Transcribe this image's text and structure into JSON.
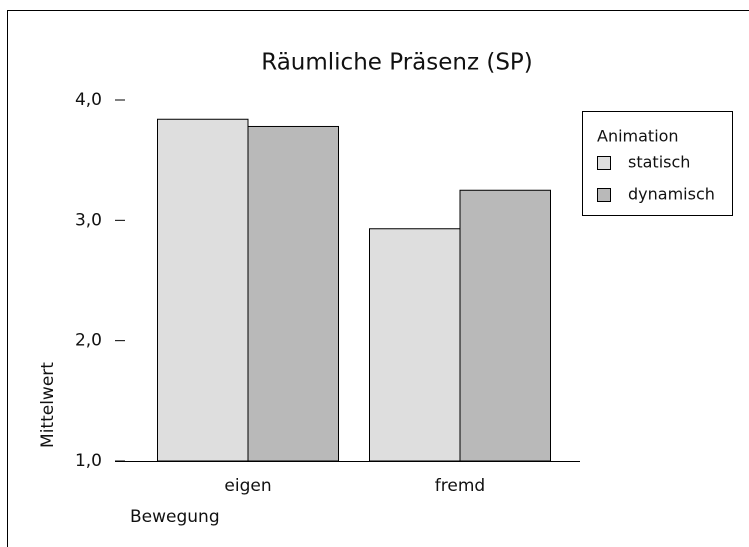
{
  "chart_data": {
    "type": "bar",
    "title": "Räumliche Präsenz (SP)",
    "categories": [
      "eigen",
      "fremd"
    ],
    "x_label": "Bewegung",
    "y_label": "Mittelwert",
    "legend_title": "Animation",
    "legend": "right",
    "series": [
      {
        "name": "statisch",
        "color": "#dedede",
        "values": [
          3.84,
          2.93
        ]
      },
      {
        "name": "dynamisch",
        "color": "#b9b9b9",
        "values": [
          3.78,
          3.25
        ]
      }
    ],
    "ylim": [
      1,
      4
    ],
    "yticks": [
      {
        "value": 1,
        "label": "1,0"
      },
      {
        "value": 2,
        "label": "2,0"
      },
      {
        "value": 3,
        "label": "3,0"
      },
      {
        "value": 4,
        "label": "4,0"
      }
    ]
  }
}
